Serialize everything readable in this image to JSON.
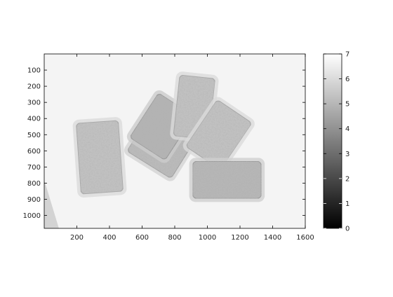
{
  "chart_data": {
    "type": "heatmap",
    "title": "",
    "xlabel": "",
    "ylabel": "",
    "colormap": "gray",
    "xlim": [
      0,
      1600
    ],
    "ylim": [
      1080,
      0
    ],
    "x_ticks": [
      "200",
      "400",
      "600",
      "800",
      "1000",
      "1200",
      "1400",
      "1600"
    ],
    "y_ticks": [
      "100",
      "200",
      "300",
      "400",
      "500",
      "600",
      "700",
      "800",
      "900",
      "1000"
    ],
    "colorbar": {
      "range": [
        0,
        7
      ],
      "ticks": [
        "0",
        "1",
        "2",
        "3",
        "4",
        "5",
        "6",
        "7"
      ]
    },
    "background_level": 6.7,
    "regions": [
      {
        "name": "bottom-left-corner",
        "level": 5.8,
        "points": [
          [
            0,
            780
          ],
          [
            0,
            1080
          ],
          [
            90,
            1080
          ]
        ]
      },
      {
        "name": "slab-tall-left",
        "level": 5.3,
        "cx": 340,
        "cy": 640,
        "w": 260,
        "h": 440,
        "angle": -4
      },
      {
        "name": "slab-center-lower",
        "level": 5.1,
        "cx": 720,
        "cy": 560,
        "w": 320,
        "h": 300,
        "angle": 32
      },
      {
        "name": "slab-center-upper",
        "level": 4.9,
        "cx": 720,
        "cy": 450,
        "w": 260,
        "h": 330,
        "angle": 33
      },
      {
        "name": "slab-upper-right",
        "level": 5.3,
        "cx": 920,
        "cy": 330,
        "w": 220,
        "h": 380,
        "angle": 6
      },
      {
        "name": "slab-right",
        "level": 5.3,
        "cx": 1070,
        "cy": 500,
        "w": 260,
        "h": 350,
        "angle": 34
      },
      {
        "name": "slab-bottom-right",
        "level": 5.0,
        "cx": 1120,
        "cy": 780,
        "w": 420,
        "h": 230,
        "angle": 0
      }
    ]
  }
}
